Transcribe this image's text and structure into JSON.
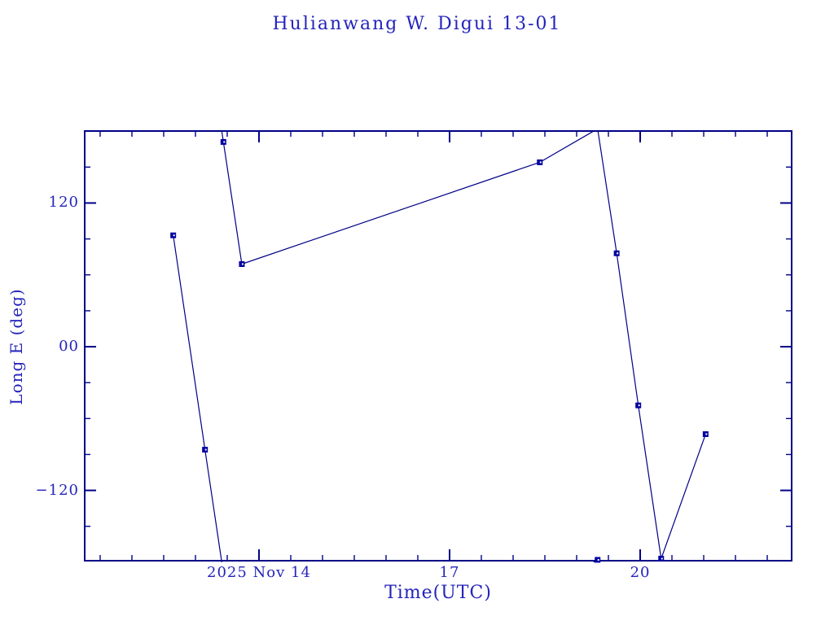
{
  "window": {
    "background": "#ffffff"
  },
  "colors": {
    "text": "#2424bb",
    "axis": "#000087",
    "line": "#000087",
    "marker": "#0000a0",
    "background": "#ffffff"
  },
  "chart_data": {
    "type": "line",
    "title": "Hulianwang W. Digui 13-01",
    "xlabel": "Time(UTC)",
    "ylabel": "Long E (deg)",
    "x_axis_unit": "days from 2025 Nov 14 00:00 UTC",
    "xlim_days": [
      -2.756,
      8.397
    ],
    "ylim": [
      -179.4,
      180.8
    ],
    "wrap_at_deg": 180,
    "grid": false,
    "legend": "none",
    "x_major_ticks": [
      {
        "t": 0,
        "label": "2025 Nov 14"
      },
      {
        "t": 3,
        "label": "17"
      },
      {
        "t": 6,
        "label": "20"
      }
    ],
    "x_minor_step_days": 0.5,
    "y_major_ticks": [
      {
        "v": 120,
        "label": "120"
      },
      {
        "v": 0,
        "label": "00"
      },
      {
        "v": -120,
        "label": "−120"
      }
    ],
    "y_minor_step_deg": 30,
    "marker_style": "square",
    "points": [
      {
        "t_days": -1.35,
        "time": "Nov 12 15:36",
        "lon_e_deg": 93
      },
      {
        "t_days": -0.85,
        "time": "Nov 13 03:36",
        "lon_e_deg": -86
      },
      {
        "t_days": -0.56,
        "time": "Nov 13 10:34",
        "lon_e_deg": 171
      },
      {
        "t_days": -0.27,
        "time": "Nov 13 17:31",
        "lon_e_deg": 69
      },
      {
        "t_days": 4.42,
        "time": "Nov 18 10:05",
        "lon_e_deg": 154
      },
      {
        "t_days": 5.33,
        "time": "Nov 19 07:55",
        "lon_e_deg": -178
      },
      {
        "t_days": 5.63,
        "time": "Nov 19 15:07",
        "lon_e_deg": 78
      },
      {
        "t_days": 5.97,
        "time": "Nov 19 23:17",
        "lon_e_deg": -49
      },
      {
        "t_days": 6.33,
        "time": "Nov 20 07:55",
        "lon_e_deg": -177
      },
      {
        "t_days": 7.03,
        "time": "Nov 21 00:43",
        "lon_e_deg": -73
      }
    ]
  }
}
